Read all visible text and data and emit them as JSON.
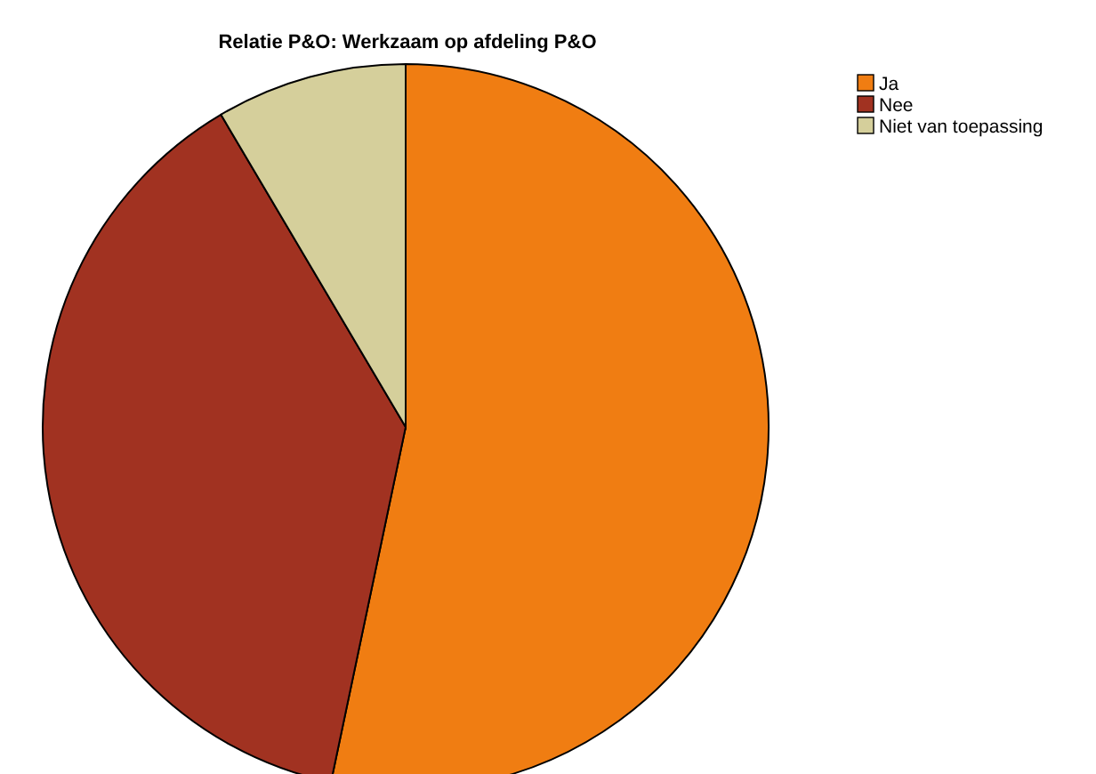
{
  "chart_data": {
    "type": "pie",
    "title": "Relatie P&O: Werkzaam op afdeling P&O",
    "categories": [
      "Ja",
      "Nee",
      "Niet van toepassing"
    ],
    "values": [
      53.3,
      38.2,
      8.5
    ],
    "colors": [
      "#f07d12",
      "#a13221",
      "#d5cf9b"
    ],
    "legend": "top right"
  }
}
